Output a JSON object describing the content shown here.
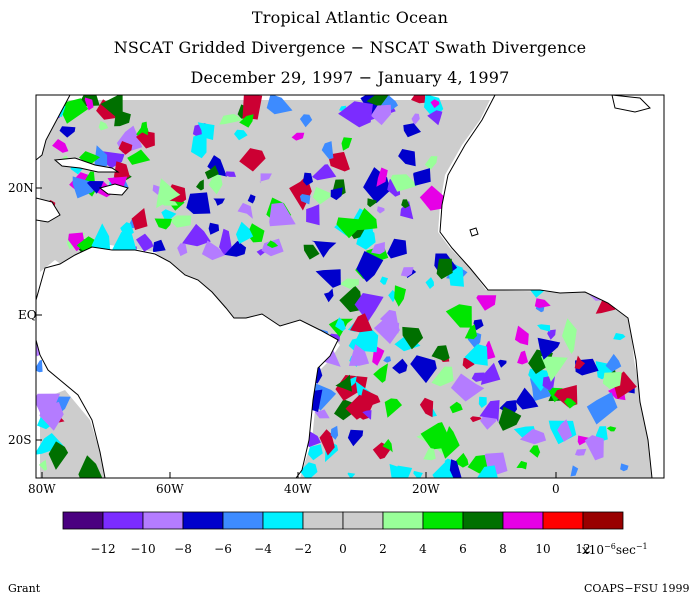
{
  "title": {
    "line1": "Tropical Atlantic Ocean",
    "line2": "NSCAT Gridded Divergence − NSCAT Swath Divergence",
    "line3": "December 29, 1997 − January 4, 1997"
  },
  "map": {
    "lat_labels": [
      "20N",
      "EQ",
      "20S"
    ],
    "lon_labels": [
      "80W",
      "60W",
      "40W",
      "20W",
      "0"
    ]
  },
  "legend": {
    "colors": [
      "#4a0080",
      "#7b2cff",
      "#b47cff",
      "#0000cc",
      "#3d8bff",
      "#00f0ff",
      "#cdcdcd",
      "#cdcdcd",
      "#99ff99",
      "#00e600",
      "#007000",
      "#e600e6",
      "#ff0000",
      "#990000"
    ],
    "tick_labels": [
      "−12",
      "−10",
      "−8",
      "−6",
      "−4",
      "−2",
      "0",
      "2",
      "4",
      "6",
      "8",
      "10",
      "12"
    ],
    "units_prefix": "x10",
    "units_exp": "−6",
    "units_mid": "sec",
    "units_exp2": "−1"
  },
  "footer": {
    "left": "Grant",
    "right": "COAPS−FSU 1999"
  }
}
